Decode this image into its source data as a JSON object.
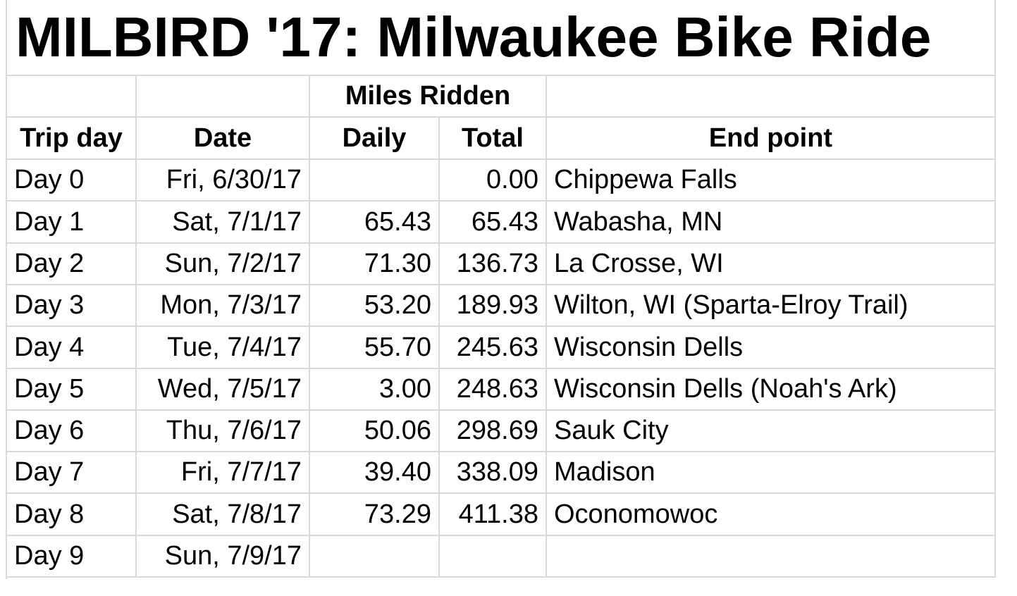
{
  "table": {
    "title": "MILBIRD '17: Milwaukee Bike Ride",
    "group_header": "Miles Ridden",
    "headers": [
      "Trip day",
      "Date",
      "Daily",
      "Total",
      "End point"
    ],
    "rows": [
      [
        "Day 0",
        "Fri, 6/30/17",
        null,
        "0.00",
        "Chippewa Falls"
      ],
      [
        "Day 1",
        "Sat, 7/1/17",
        "65.43",
        "65.43",
        "Wabasha, MN"
      ],
      [
        "Day 2",
        "Sun, 7/2/17",
        "71.30",
        "136.73",
        "La Crosse, WI"
      ],
      [
        "Day 3",
        "Mon, 7/3/17",
        "53.20",
        "189.93",
        "Wilton, WI (Sparta-Elroy Trail)"
      ],
      [
        "Day 4",
        "Tue, 7/4/17",
        "55.70",
        "245.63",
        "Wisconsin Dells"
      ],
      [
        "Day 5",
        "Wed, 7/5/17",
        "3.00",
        "248.63",
        "Wisconsin Dells (Noah's Ark)"
      ],
      [
        "Day 6",
        "Thu, 7/6/17",
        "50.06",
        "298.69",
        "Sauk City"
      ],
      [
        "Day 7",
        "Fri, 7/7/17",
        "39.40",
        "338.09",
        "Madison"
      ],
      [
        "Day 8",
        "Sat, 7/8/17",
        "73.29",
        "411.38",
        "Oconomowoc"
      ],
      [
        "Day 9",
        "Sun, 7/9/17",
        null,
        null,
        null
      ]
    ]
  }
}
